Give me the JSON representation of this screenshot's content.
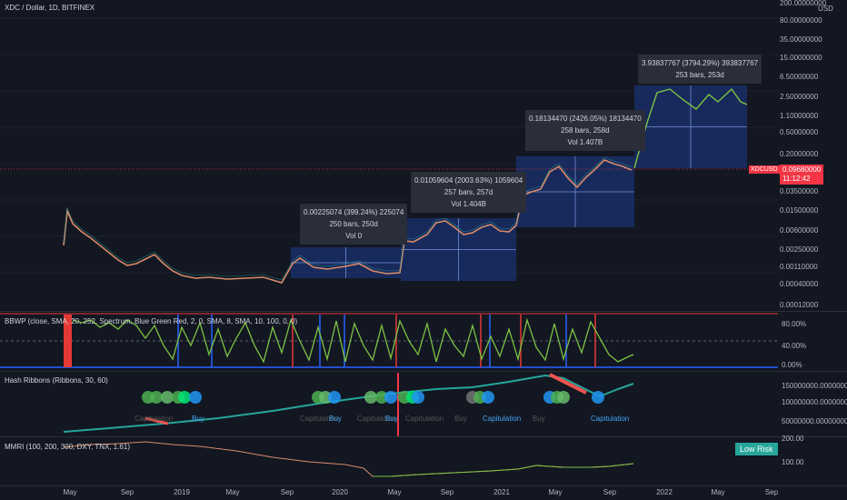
{
  "title": "XDC / Dollar, 1D, BITFINEX",
  "currency": "USD",
  "main_axis": [
    "200.00000000",
    "80.00000000",
    "35.00000000",
    "15.00000000",
    "6.50000000",
    "2.50000000",
    "1.10000000",
    "0.50000000",
    "0.20000000",
    "0.09680000",
    "0.03500000",
    "0.01500000",
    "0.00600000",
    "0.00250000",
    "0.00110000",
    "0.00040000",
    "0.00012000"
  ],
  "price_tag": {
    "symbol": "XDCUSD",
    "price": "0.09680000",
    "countdown": "11:12:42"
  },
  "callouts": [
    {
      "line1": "0.00225074 (399.24%) 225074",
      "line2": "250 bars, 250d",
      "line3": "Vol 0"
    },
    {
      "line1": "0.01059604 (2003.63%) 1059604",
      "line2": "257 bars, 257d",
      "line3": "Vol 1.404B"
    },
    {
      "line1": "0.18134470 (2426.05%) 18134470",
      "line2": "258 bars, 258d",
      "line3": "Vol 1.407B"
    },
    {
      "line1": "3.93837767 (3794.29%) 393837767",
      "line2": "253 bars, 253d",
      "line3": ""
    }
  ],
  "bbwp": {
    "header": "BBWP (close, SMA, 20, 252, Spectrum, Blue Green Red, 2, 0, SMA, 8, SMA, 10, 100, 0, 0)",
    "axis": [
      "80.00%",
      "40.00%",
      "0.00%"
    ]
  },
  "hash": {
    "header": "Hash Ribbons (Ribbons, 30, 60)",
    "axis": [
      "150000000.00000000",
      "100000000.00000000",
      "50000000.00000000"
    ],
    "labels": [
      {
        "t": "Capitulation"
      },
      {
        "t": "Buy"
      },
      {
        "t": "Capitulation"
      },
      {
        "t": "Buy"
      },
      {
        "t": "Capitulation"
      },
      {
        "t": "Buy"
      },
      {
        "t": "Capitulation"
      },
      {
        "t": "Buy"
      },
      {
        "t": "Capitulation"
      },
      {
        "t": "Buy"
      },
      {
        "t": "Capitulation"
      },
      {
        "t": "Buy"
      }
    ]
  },
  "mmri": {
    "header": "MMRI (100, 200, 300, DXY, TNX, 1.61)",
    "axis": [
      "200.00",
      "100.00"
    ],
    "badge": "Low Risk"
  },
  "x_axis": [
    "May",
    "Sep",
    "2019",
    "May",
    "Sep",
    "2020",
    "May",
    "Sep",
    "2021",
    "May",
    "Sep",
    "2022",
    "May",
    "Sep"
  ],
  "colors": {
    "bg": "#131722",
    "box": "#1e3a8a",
    "projection": "#7cc243",
    "up": "#26a69a",
    "down": "#ef5350",
    "price_line": "#f23645"
  }
}
